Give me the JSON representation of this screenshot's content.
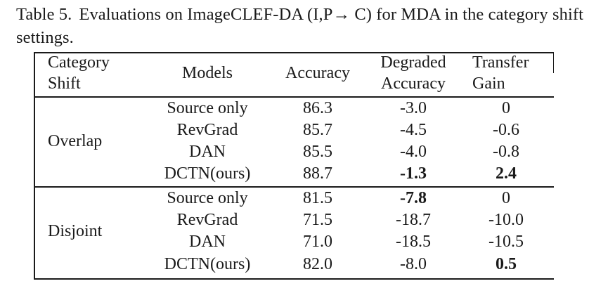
{
  "caption": {
    "label": "Table 5.",
    "text": "Evaluations on ImageCLEF-DA (I,P→ C) for MDA in the category shift settings."
  },
  "table": {
    "headers": {
      "category_shift_line1": "Category",
      "category_shift_line2": "Shift",
      "models": "Models",
      "accuracy": "Accuracy",
      "degraded_line1": "Degraded",
      "degraded_line2": "Accuracy",
      "transfer_line1": "Transfer",
      "transfer_line2": "Gain"
    },
    "groups": [
      {
        "name": "Overlap",
        "rows": [
          {
            "model": "Source only",
            "accuracy": "86.3",
            "degraded": "-3.0",
            "gain": "0",
            "degraded_bold": false,
            "gain_bold": false
          },
          {
            "model": "RevGrad",
            "accuracy": "85.7",
            "degraded": "-4.5",
            "gain": "-0.6",
            "degraded_bold": false,
            "gain_bold": false
          },
          {
            "model": "DAN",
            "accuracy": "85.5",
            "degraded": "-4.0",
            "gain": "-0.8",
            "degraded_bold": false,
            "gain_bold": false
          },
          {
            "model": "DCTN(ours)",
            "accuracy": "88.7",
            "degraded": "-1.3",
            "gain": "2.4",
            "degraded_bold": true,
            "gain_bold": true
          }
        ]
      },
      {
        "name": "Disjoint",
        "rows": [
          {
            "model": "Source only",
            "accuracy": "81.5",
            "degraded": "-7.8",
            "gain": "0",
            "degraded_bold": true,
            "gain_bold": false
          },
          {
            "model": "RevGrad",
            "accuracy": "71.5",
            "degraded": "-18.7",
            "gain": "-10.0",
            "degraded_bold": false,
            "gain_bold": false
          },
          {
            "model": "DAN",
            "accuracy": "71.0",
            "degraded": "-18.5",
            "gain": "-10.5",
            "degraded_bold": false,
            "gain_bold": false
          },
          {
            "model": "DCTN(ours)",
            "accuracy": "82.0",
            "degraded": "-8.0",
            "gain": "0.5",
            "degraded_bold": false,
            "gain_bold": true
          }
        ]
      }
    ]
  }
}
